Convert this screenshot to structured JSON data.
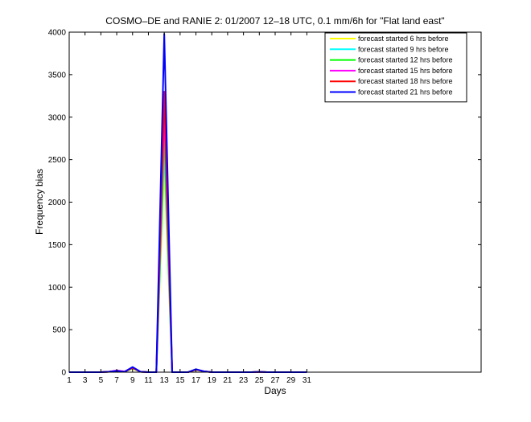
{
  "chart_data": {
    "type": "line",
    "title": "COSMO–DE and RANIE 2: 01/2007 12–18 UTC, 0.1 mm/6h for \"Flat land east\"",
    "xlabel": "Days",
    "ylabel": "Frequency bias",
    "xlim": [
      1,
      53
    ],
    "ylim": [
      0,
      4000
    ],
    "xticks": [
      1,
      3,
      5,
      7,
      9,
      11,
      13,
      15,
      17,
      19,
      21,
      23,
      25,
      27,
      29,
      31
    ],
    "yticks": [
      0,
      500,
      1000,
      1500,
      2000,
      2500,
      3000,
      3500,
      4000
    ],
    "grid": false,
    "legend_position": "top-right",
    "x": [
      1,
      2,
      3,
      4,
      5,
      6,
      7,
      8,
      9,
      10,
      11,
      12,
      13,
      14,
      15,
      16,
      17,
      18,
      19,
      20,
      21,
      22,
      23,
      24,
      25,
      26,
      27,
      28,
      29,
      30,
      31
    ],
    "series": [
      {
        "name": "forecast started 6 hrs before",
        "color": "#ffff00",
        "values": [
          0,
          0,
          0,
          0,
          0,
          5,
          10,
          5,
          40,
          5,
          0,
          0,
          2400,
          0,
          0,
          0,
          25,
          10,
          0,
          0,
          0,
          0,
          0,
          0,
          3,
          0,
          0,
          0,
          0,
          0,
          0
        ]
      },
      {
        "name": "forecast started 9 hrs before",
        "color": "#00ffff",
        "values": [
          0,
          0,
          0,
          0,
          0,
          5,
          12,
          5,
          45,
          5,
          0,
          0,
          2600,
          0,
          0,
          0,
          28,
          10,
          0,
          0,
          0,
          0,
          0,
          0,
          3,
          0,
          0,
          0,
          0,
          0,
          0
        ]
      },
      {
        "name": "forecast started 12 hrs before",
        "color": "#00ff00",
        "values": [
          0,
          0,
          0,
          0,
          0,
          5,
          15,
          5,
          50,
          5,
          0,
          0,
          2800,
          0,
          0,
          0,
          30,
          10,
          0,
          0,
          0,
          0,
          0,
          0,
          3,
          0,
          0,
          0,
          0,
          0,
          0
        ]
      },
      {
        "name": "forecast started 15 hrs before",
        "color": "#ff00ff",
        "values": [
          0,
          0,
          0,
          0,
          0,
          5,
          20,
          8,
          55,
          5,
          0,
          0,
          3050,
          0,
          0,
          0,
          30,
          10,
          0,
          0,
          0,
          0,
          0,
          0,
          3,
          0,
          0,
          0,
          0,
          0,
          0
        ]
      },
      {
        "name": "forecast started 18 hrs before",
        "color": "#ff0000",
        "values": [
          0,
          0,
          0,
          0,
          0,
          5,
          15,
          5,
          50,
          5,
          0,
          0,
          3300,
          0,
          0,
          0,
          30,
          10,
          0,
          0,
          0,
          0,
          0,
          0,
          3,
          0,
          0,
          0,
          0,
          0,
          0
        ]
      },
      {
        "name": "forecast started 21 hrs before",
        "color": "#0000ff",
        "values": [
          0,
          0,
          0,
          0,
          0,
          5,
          15,
          5,
          60,
          5,
          0,
          0,
          3980,
          0,
          0,
          0,
          35,
          10,
          0,
          0,
          0,
          0,
          0,
          0,
          3,
          0,
          0,
          0,
          0,
          0,
          0
        ]
      }
    ]
  }
}
